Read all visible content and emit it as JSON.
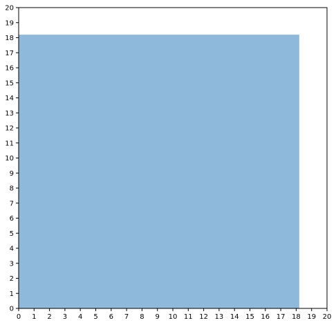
{
  "chart_data": {
    "type": "area",
    "title": "",
    "xlabel": "",
    "ylabel": "",
    "xlim": [
      0,
      20
    ],
    "ylim": [
      0,
      20
    ],
    "xticks": [
      "0",
      "1",
      "2",
      "3",
      "4",
      "5",
      "6",
      "7",
      "8",
      "9",
      "10",
      "11",
      "12",
      "13",
      "14",
      "15",
      "16",
      "17",
      "18",
      "19",
      "20"
    ],
    "yticks": [
      "0",
      "1",
      "2",
      "3",
      "4",
      "5",
      "6",
      "7",
      "8",
      "9",
      "10",
      "11",
      "12",
      "13",
      "14",
      "15",
      "16",
      "17",
      "18",
      "19",
      "20"
    ],
    "grid": false,
    "legend": "none",
    "shapes": [
      {
        "kind": "rectangle",
        "x": [
          0,
          18.2
        ],
        "y": [
          0,
          18.2
        ],
        "color": "#8fb9da"
      }
    ]
  }
}
